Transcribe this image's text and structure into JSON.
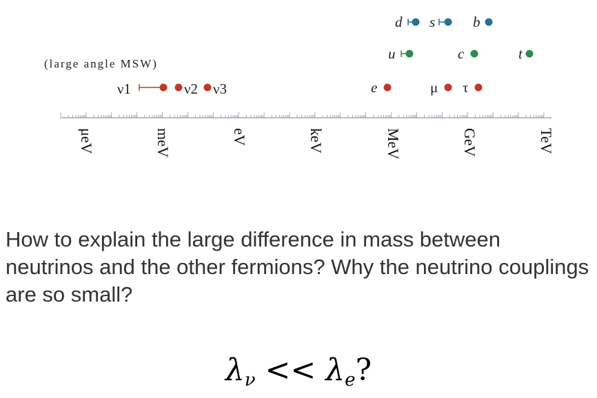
{
  "axis": {
    "ticks": [
      "μeV",
      "meV",
      "eV",
      "keV",
      "MeV",
      "GeV",
      "TeV"
    ]
  },
  "note": "(large angle MSW)",
  "particles": {
    "quarks_down": [
      {
        "label": "d",
        "color": "#2b6f96",
        "errorbar": true
      },
      {
        "label": "s",
        "color": "#2b6f96",
        "errorbar": true
      },
      {
        "label": "b",
        "color": "#2b6f96",
        "errorbar": false
      }
    ],
    "quarks_up": [
      {
        "label": "u",
        "color": "#2e8b4f",
        "errorbar": true
      },
      {
        "label": "c",
        "color": "#2e8b4f",
        "errorbar": false
      },
      {
        "label": "t",
        "color": "#2e8b4f",
        "errorbar": false
      }
    ],
    "neutrinos": [
      {
        "label": "ν1",
        "color": "#c0392b"
      },
      {
        "label": "ν2",
        "color": "#c0392b"
      },
      {
        "label": "ν3",
        "color": "#c0392b"
      }
    ],
    "leptons": [
      {
        "label": "e",
        "color": "#c0392b"
      },
      {
        "label": "μ",
        "color": "#c0392b"
      },
      {
        "label": "τ",
        "color": "#c0392b"
      }
    ]
  },
  "question": "How to explain the large difference in mass between neutrinos and the other fermions? Why the neutrino couplings are so small?",
  "formula": {
    "lhs": "λ",
    "lhs_sub": "ν",
    "op": " << ",
    "rhs": "λ",
    "rhs_sub": "e",
    "tail": "?"
  },
  "colors": {
    "lepton": "#c0392b",
    "up_quark": "#2e8b4f",
    "down_quark": "#2b6f96",
    "axis": "#8a9aa8"
  }
}
